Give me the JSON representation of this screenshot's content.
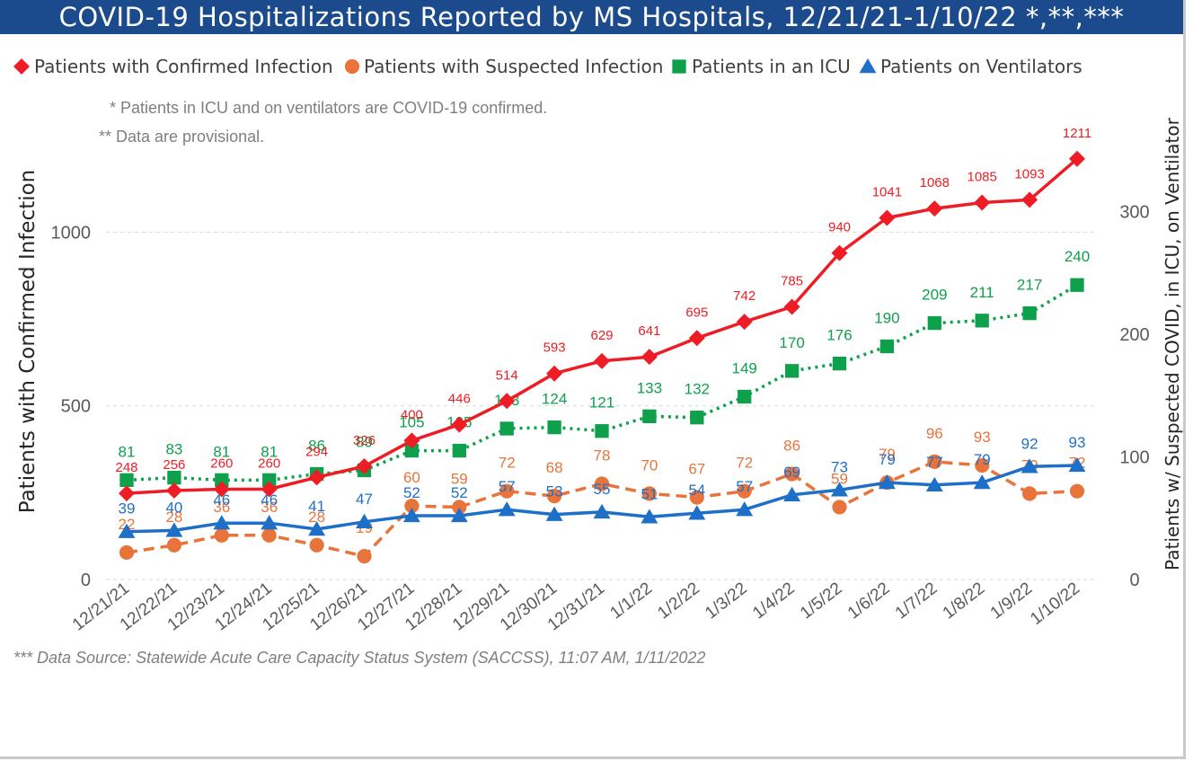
{
  "chart_data": {
    "type": "line",
    "title": "COVID-19 Hospitalizations Reported by MS Hospitals, 12/21/21-1/10/22 *,**,***",
    "notes": [
      "* Patients in ICU and on ventilators are COVID-19 confirmed.",
      "** Data are provisional."
    ],
    "source": "*** Data Source: Statewide Acute Care Capacity Status System (SACCSS), 11:07 AM, 1/11/2022",
    "categories": [
      "12/21/21",
      "12/22/21",
      "12/23/21",
      "12/24/21",
      "12/25/21",
      "12/26/21",
      "12/27/21",
      "12/28/21",
      "12/29/21",
      "12/30/21",
      "12/31/21",
      "1/1/22",
      "1/2/22",
      "1/3/22",
      "1/4/22",
      "1/5/22",
      "1/6/22",
      "1/7/22",
      "1/8/22",
      "1/9/22",
      "1/10/22"
    ],
    "ylabel_left": "Patients with Confirmed Infection",
    "ylabel_right": "Patients w/ Suspected COVID, in ICU, on Ventilator",
    "y_left": {
      "range": [
        0,
        1270
      ],
      "ticks": [
        "0",
        "500",
        "1000"
      ]
    },
    "y_right": {
      "range": [
        0,
        359.5
      ],
      "ticks": [
        "0",
        "100",
        "200",
        "300"
      ]
    },
    "legend_position": "top-left",
    "gridlines": "dashed horizontal",
    "series": [
      {
        "name": "Patients with Confirmed Infection",
        "axis": "left",
        "color": "#ee1c24",
        "marker": "diamond",
        "line": "solid",
        "values": [
          248,
          256,
          260,
          260,
          294,
          326,
          400,
          446,
          514,
          593,
          629,
          641,
          695,
          742,
          785,
          940,
          1041,
          1068,
          1085,
          1093,
          1211
        ]
      },
      {
        "name": "Patients with Suspected Infection",
        "axis": "right",
        "color": "#e8743b",
        "marker": "circle",
        "line": "dashed",
        "values": [
          22,
          28,
          36,
          36,
          28,
          19,
          60,
          59,
          72,
          68,
          78,
          70,
          67,
          72,
          86,
          59,
          79,
          96,
          93,
          70,
          72
        ]
      },
      {
        "name": "Patients in an ICU",
        "axis": "right",
        "color": "#0ea04b",
        "marker": "square",
        "line": "dotted",
        "values": [
          81,
          83,
          81,
          81,
          86,
          89,
          105,
          105,
          123,
          124,
          121,
          133,
          132,
          149,
          170,
          176,
          190,
          209,
          211,
          217,
          240
        ]
      },
      {
        "name": "Patients on Ventilators",
        "axis": "right",
        "color": "#1e6fc8",
        "marker": "triangle",
        "line": "solid",
        "values": [
          39,
          40,
          46,
          46,
          41,
          47,
          52,
          52,
          57,
          53,
          55,
          51,
          54,
          57,
          69,
          73,
          79,
          77,
          79,
          92,
          93
        ]
      }
    ]
  }
}
